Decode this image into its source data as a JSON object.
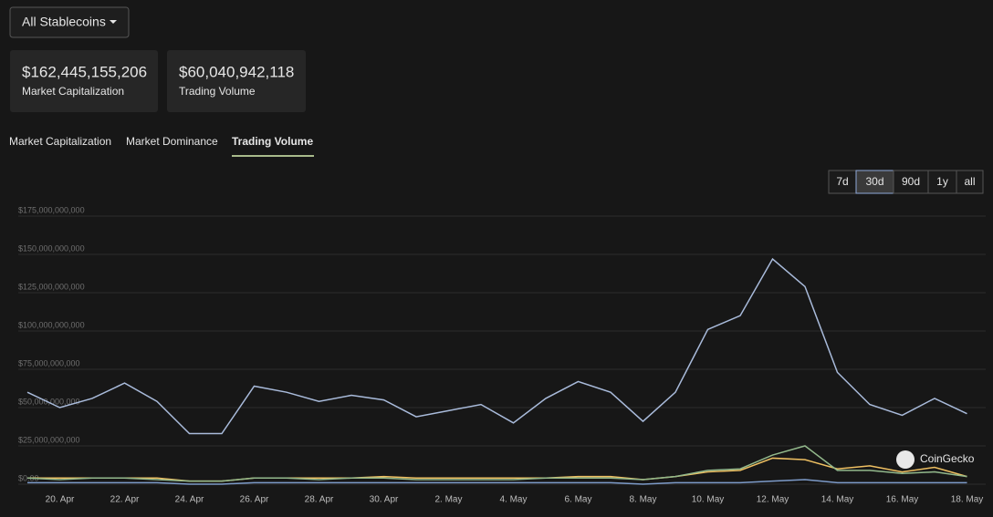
{
  "dropdown": "All Stablecoins",
  "stats": [
    {
      "value": "$162,445,155,206",
      "label": "Market Capitalization"
    },
    {
      "value": "$60,040,942,118",
      "label": "Trading Volume"
    }
  ],
  "tabs": [
    "Market Capitalization",
    "Market Dominance",
    "Trading Volume"
  ],
  "active_tab": 2,
  "ranges": [
    "7d",
    "30d",
    "90d",
    "1y",
    "all"
  ],
  "active_range": 1,
  "watermark": "CoinGecko",
  "chart_data": {
    "type": "line",
    "categories": [
      null,
      "20. Apr",
      null,
      "22. Apr",
      null,
      "24. Apr",
      null,
      "26. Apr",
      null,
      "28. Apr",
      null,
      "30. Apr",
      null,
      "2. May",
      null,
      "4. May",
      null,
      "6. May",
      null,
      "8. May",
      null,
      "10. May",
      null,
      "12. May",
      null,
      "14. May",
      null,
      "16. May",
      null,
      "18. May"
    ],
    "series": [
      {
        "color": "#a9bbdb",
        "values": [
          60000000000,
          50000000000,
          56000000000,
          66000000000,
          54000000000,
          33000000000,
          33000000000,
          64000000000,
          60000000000,
          54000000000,
          58000000000,
          55000000000,
          44000000000,
          48000000000,
          52000000000,
          40000000000,
          56000000000,
          67000000000,
          60000000000,
          41000000000,
          60000000000,
          101000000000,
          110000000000,
          147000000000,
          129000000000,
          73000000000,
          52000000000,
          45000000000,
          56000000000,
          46000000000
        ]
      },
      {
        "color": "#93b98c",
        "values": [
          4000000000,
          3000000000,
          4000000000,
          4000000000,
          3000000000,
          2000000000,
          2000000000,
          4000000000,
          4000000000,
          3000000000,
          4000000000,
          4000000000,
          3000000000,
          3000000000,
          3000000000,
          3000000000,
          4000000000,
          4000000000,
          4000000000,
          3000000000,
          5000000000,
          9000000000,
          10000000000,
          19000000000,
          25000000000,
          9000000000,
          9000000000,
          7000000000,
          8000000000,
          5000000000
        ]
      },
      {
        "color": "#efc062",
        "values": [
          4000000000,
          4000000000,
          4000000000,
          4000000000,
          4000000000,
          2000000000,
          2000000000,
          4000000000,
          4000000000,
          4000000000,
          4000000000,
          5000000000,
          4000000000,
          4000000000,
          4000000000,
          4000000000,
          4000000000,
          5000000000,
          5000000000,
          3000000000,
          5000000000,
          8000000000,
          9000000000,
          17000000000,
          16000000000,
          10000000000,
          12000000000,
          8000000000,
          11000000000,
          5000000000
        ]
      },
      {
        "color": "#7d9bc9",
        "values": [
          1000000000,
          1000000000,
          1000000000,
          1000000000,
          1000000000,
          0,
          0,
          1000000000,
          1000000000,
          1000000000,
          1000000000,
          1000000000,
          1000000000,
          1000000000,
          1000000000,
          1000000000,
          1000000000,
          1000000000,
          1000000000,
          0,
          1000000000,
          1000000000,
          1000000000,
          2000000000,
          3000000000,
          1000000000,
          1000000000,
          1000000000,
          1000000000,
          1000000000
        ]
      }
    ],
    "ylim": [
      0,
      175000000000
    ],
    "yticks": [
      {
        "value": 0,
        "label": "$0.00"
      },
      {
        "value": 25000000000,
        "label": "$25,000,000,000"
      },
      {
        "value": 50000000000,
        "label": "$50,000,000,000"
      },
      {
        "value": 75000000000,
        "label": "$75,000,000,000"
      },
      {
        "value": 100000000000,
        "label": "$100,000,000,000"
      },
      {
        "value": 125000000000,
        "label": "$125,000,000,000"
      },
      {
        "value": 150000000000,
        "label": "$150,000,000,000"
      },
      {
        "value": 175000000000,
        "label": "$175,000,000,000"
      }
    ],
    "grid": true
  }
}
